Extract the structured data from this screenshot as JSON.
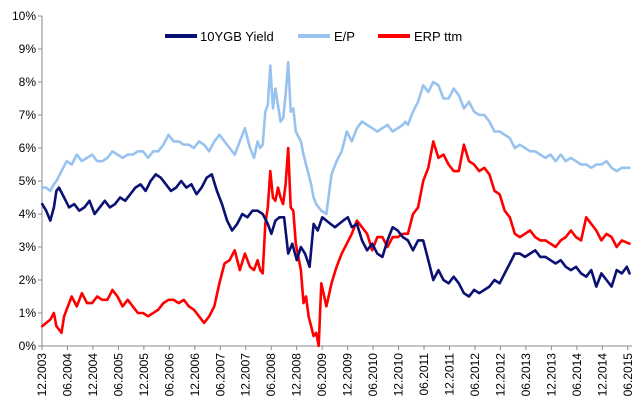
{
  "chart_data": {
    "type": "line",
    "title": "",
    "xlabel": "",
    "ylabel": "",
    "ylim": [
      0,
      10
    ],
    "x_range": [
      2003.917,
      2015.5
    ],
    "y_ticks": [
      "0%",
      "1%",
      "2%",
      "3%",
      "4%",
      "5%",
      "6%",
      "7%",
      "8%",
      "9%",
      "10%"
    ],
    "x_ticks": [
      "12.2003",
      "06.2004",
      "12.2004",
      "06.2005",
      "12.2005",
      "06.2006",
      "12.2006",
      "06.2007",
      "12.2007",
      "06.2008",
      "12.2008",
      "06.2009",
      "12.2009",
      "06.2010",
      "12.2010",
      "06.2011",
      "12.2011",
      "06.2012",
      "12.2012",
      "06.2013",
      "12.2013",
      "06.2014",
      "12.2014",
      "06.2015"
    ],
    "legend_position": "top",
    "series": [
      {
        "name": "10YGB Yield",
        "color": "#0a1172",
        "x": [
          2003.92,
          2004.0,
          2004.08,
          2004.15,
          2004.2,
          2004.25,
          2004.35,
          2004.45,
          2004.55,
          2004.65,
          2004.75,
          2004.85,
          2004.95,
          2005.05,
          2005.15,
          2005.25,
          2005.35,
          2005.45,
          2005.55,
          2005.65,
          2005.75,
          2005.85,
          2005.95,
          2006.05,
          2006.15,
          2006.25,
          2006.35,
          2006.45,
          2006.55,
          2006.65,
          2006.75,
          2006.85,
          2006.95,
          2007.05,
          2007.15,
          2007.25,
          2007.35,
          2007.45,
          2007.55,
          2007.65,
          2007.75,
          2007.85,
          2007.95,
          2008.05,
          2008.15,
          2008.25,
          2008.35,
          2008.42,
          2008.5,
          2008.58,
          2008.67,
          2008.75,
          2008.83,
          2008.92,
          2009.0,
          2009.08,
          2009.17,
          2009.25,
          2009.33,
          2009.42,
          2009.5,
          2009.58,
          2009.67,
          2009.75,
          2009.83,
          2009.92,
          2010.0,
          2010.1,
          2010.2,
          2010.3,
          2010.4,
          2010.5,
          2010.6,
          2010.7,
          2010.8,
          2010.9,
          2011.0,
          2011.1,
          2011.2,
          2011.3,
          2011.4,
          2011.5,
          2011.6,
          2011.7,
          2011.8,
          2011.9,
          2012.0,
          2012.1,
          2012.2,
          2012.3,
          2012.4,
          2012.5,
          2012.6,
          2012.7,
          2012.8,
          2012.9,
          2013.0,
          2013.1,
          2013.2,
          2013.3,
          2013.4,
          2013.5,
          2013.6,
          2013.7,
          2013.8,
          2013.9,
          2014.0,
          2014.1,
          2014.2,
          2014.3,
          2014.4,
          2014.5,
          2014.6,
          2014.7,
          2014.8,
          2014.9,
          2015.0,
          2015.1,
          2015.2,
          2015.3,
          2015.4,
          2015.45
        ],
        "values": [
          4.3,
          4.1,
          3.8,
          4.2,
          4.7,
          4.8,
          4.5,
          4.2,
          4.3,
          4.1,
          4.2,
          4.4,
          4.0,
          4.2,
          4.4,
          4.2,
          4.3,
          4.5,
          4.4,
          4.6,
          4.8,
          4.9,
          4.7,
          5.0,
          5.2,
          5.1,
          4.9,
          4.7,
          4.8,
          5.0,
          4.8,
          4.9,
          4.6,
          4.8,
          5.1,
          5.2,
          4.7,
          4.3,
          3.8,
          3.5,
          3.7,
          4.0,
          3.9,
          4.1,
          4.1,
          4.0,
          3.7,
          3.4,
          3.8,
          3.9,
          3.9,
          2.8,
          3.1,
          2.6,
          3.0,
          2.8,
          2.4,
          3.7,
          3.5,
          3.9,
          3.8,
          3.7,
          3.6,
          3.7,
          3.8,
          3.9,
          3.6,
          3.7,
          3.2,
          2.9,
          3.1,
          2.8,
          2.7,
          3.2,
          3.6,
          3.5,
          3.3,
          3.2,
          2.9,
          3.2,
          3.2,
          2.6,
          2.0,
          2.3,
          2.0,
          1.9,
          2.1,
          1.9,
          1.6,
          1.5,
          1.7,
          1.6,
          1.7,
          1.8,
          2.0,
          1.9,
          2.2,
          2.5,
          2.8,
          2.8,
          2.7,
          2.8,
          2.9,
          2.7,
          2.7,
          2.6,
          2.5,
          2.6,
          2.4,
          2.3,
          2.4,
          2.2,
          2.1,
          2.3,
          1.8,
          2.2,
          2.0,
          1.8,
          2.3,
          2.2,
          2.4,
          2.2
        ]
      },
      {
        "name": "E/P",
        "color": "#99c3ef",
        "x": [
          2003.92,
          2004.0,
          2004.08,
          2004.15,
          2004.2,
          2004.3,
          2004.4,
          2004.5,
          2004.6,
          2004.7,
          2004.8,
          2004.9,
          2005.0,
          2005.1,
          2005.2,
          2005.3,
          2005.4,
          2005.5,
          2005.6,
          2005.7,
          2005.8,
          2005.9,
          2006.0,
          2006.1,
          2006.2,
          2006.3,
          2006.4,
          2006.5,
          2006.6,
          2006.7,
          2006.8,
          2006.9,
          2007.0,
          2007.1,
          2007.2,
          2007.3,
          2007.4,
          2007.5,
          2007.6,
          2007.7,
          2007.8,
          2007.9,
          2008.0,
          2008.08,
          2008.15,
          2008.2,
          2008.25,
          2008.3,
          2008.35,
          2008.4,
          2008.45,
          2008.5,
          2008.55,
          2008.6,
          2008.65,
          2008.7,
          2008.75,
          2008.8,
          2008.85,
          2008.9,
          2009.0,
          2009.05,
          2009.1,
          2009.15,
          2009.2,
          2009.25,
          2009.3,
          2009.35,
          2009.4,
          2009.5,
          2009.6,
          2009.7,
          2009.8,
          2009.9,
          2010.0,
          2010.1,
          2010.2,
          2010.3,
          2010.4,
          2010.5,
          2010.6,
          2010.7,
          2010.8,
          2010.9,
          2011.0,
          2011.05,
          2011.1,
          2011.15,
          2011.2,
          2011.3,
          2011.4,
          2011.5,
          2011.6,
          2011.7,
          2011.8,
          2011.9,
          2012.0,
          2012.1,
          2012.2,
          2012.3,
          2012.4,
          2012.5,
          2012.6,
          2012.7,
          2012.8,
          2012.9,
          2013.0,
          2013.1,
          2013.2,
          2013.3,
          2013.4,
          2013.5,
          2013.6,
          2013.7,
          2013.8,
          2013.9,
          2014.0,
          2014.1,
          2014.2,
          2014.3,
          2014.4,
          2014.5,
          2014.6,
          2014.7,
          2014.8,
          2014.9,
          2015.0,
          2015.1,
          2015.2,
          2015.3,
          2015.45
        ],
        "values": [
          4.8,
          4.8,
          4.7,
          4.9,
          5.0,
          5.3,
          5.6,
          5.5,
          5.8,
          5.6,
          5.7,
          5.8,
          5.6,
          5.6,
          5.7,
          5.9,
          5.8,
          5.7,
          5.8,
          5.8,
          5.9,
          5.9,
          5.7,
          5.9,
          5.9,
          6.1,
          6.4,
          6.2,
          6.2,
          6.1,
          6.1,
          6.0,
          6.2,
          6.1,
          5.9,
          6.2,
          6.4,
          6.2,
          6.0,
          5.8,
          6.2,
          6.6,
          6.0,
          5.7,
          6.2,
          6.0,
          6.1,
          7.1,
          7.3,
          8.5,
          7.2,
          7.8,
          7.3,
          6.8,
          6.9,
          7.6,
          8.6,
          7.1,
          7.2,
          6.5,
          6.2,
          5.8,
          5.5,
          5.2,
          4.9,
          4.5,
          4.3,
          4.2,
          4.1,
          4.0,
          5.2,
          5.6,
          5.9,
          6.5,
          6.2,
          6.6,
          6.8,
          6.7,
          6.6,
          6.5,
          6.6,
          6.7,
          6.5,
          6.6,
          6.7,
          6.8,
          6.7,
          6.9,
          7.1,
          7.4,
          7.9,
          7.7,
          8.0,
          7.9,
          7.5,
          7.5,
          7.8,
          7.6,
          7.2,
          7.4,
          7.1,
          7.0,
          7.0,
          6.8,
          6.5,
          6.5,
          6.4,
          6.3,
          6.0,
          6.1,
          6.0,
          5.9,
          5.9,
          5.8,
          5.7,
          5.8,
          5.6,
          5.8,
          5.6,
          5.7,
          5.6,
          5.5,
          5.5,
          5.4,
          5.5,
          5.5,
          5.6,
          5.4,
          5.3,
          5.4,
          5.4
        ]
      },
      {
        "name": "ERP ttm",
        "color": "#ff0000",
        "x": [
          2003.92,
          2004.0,
          2004.08,
          2004.15,
          2004.2,
          2004.25,
          2004.3,
          2004.35,
          2004.4,
          2004.5,
          2004.6,
          2004.7,
          2004.8,
          2004.9,
          2005.0,
          2005.1,
          2005.2,
          2005.3,
          2005.4,
          2005.5,
          2005.6,
          2005.7,
          2005.8,
          2005.9,
          2006.0,
          2006.1,
          2006.2,
          2006.3,
          2006.4,
          2006.5,
          2006.6,
          2006.7,
          2006.8,
          2006.9,
          2007.0,
          2007.1,
          2007.2,
          2007.3,
          2007.4,
          2007.5,
          2007.6,
          2007.7,
          2007.8,
          2007.9,
          2008.0,
          2008.08,
          2008.15,
          2008.2,
          2008.25,
          2008.3,
          2008.35,
          2008.4,
          2008.45,
          2008.5,
          2008.55,
          2008.6,
          2008.65,
          2008.7,
          2008.75,
          2008.8,
          2008.85,
          2008.9,
          2009.0,
          2009.05,
          2009.1,
          2009.15,
          2009.2,
          2009.25,
          2009.3,
          2009.35,
          2009.4,
          2009.5,
          2009.6,
          2009.7,
          2009.8,
          2009.9,
          2010.0,
          2010.1,
          2010.2,
          2010.3,
          2010.4,
          2010.5,
          2010.6,
          2010.7,
          2010.8,
          2010.9,
          2011.0,
          2011.1,
          2011.2,
          2011.3,
          2011.4,
          2011.5,
          2011.6,
          2011.7,
          2011.8,
          2011.9,
          2012.0,
          2012.1,
          2012.2,
          2012.3,
          2012.4,
          2012.5,
          2012.6,
          2012.7,
          2012.8,
          2012.9,
          2013.0,
          2013.1,
          2013.2,
          2013.3,
          2013.4,
          2013.5,
          2013.6,
          2013.7,
          2013.8,
          2013.9,
          2014.0,
          2014.1,
          2014.2,
          2014.3,
          2014.4,
          2014.5,
          2014.6,
          2014.7,
          2014.8,
          2014.9,
          2015.0,
          2015.1,
          2015.2,
          2015.3,
          2015.45
        ],
        "values": [
          0.6,
          0.7,
          0.8,
          1.0,
          0.6,
          0.5,
          0.4,
          0.9,
          1.1,
          1.5,
          1.2,
          1.6,
          1.3,
          1.3,
          1.5,
          1.4,
          1.4,
          1.7,
          1.5,
          1.2,
          1.4,
          1.2,
          1.0,
          1.0,
          0.9,
          1.0,
          1.1,
          1.3,
          1.4,
          1.4,
          1.3,
          1.4,
          1.2,
          1.1,
          0.9,
          0.7,
          0.9,
          1.2,
          1.9,
          2.5,
          2.6,
          2.9,
          2.3,
          2.8,
          2.4,
          2.3,
          2.6,
          2.3,
          2.2,
          3.7,
          4.2,
          5.3,
          4.5,
          4.4,
          4.8,
          4.5,
          4.3,
          4.9,
          6.0,
          4.2,
          4.1,
          3.1,
          2.3,
          1.3,
          1.5,
          0.9,
          0.6,
          0.3,
          0.4,
          0.0,
          1.9,
          1.2,
          1.9,
          2.4,
          2.8,
          3.1,
          3.4,
          3.8,
          3.6,
          3.4,
          2.9,
          3.3,
          3.3,
          3.0,
          3.3,
          3.3,
          3.4,
          3.4,
          4.0,
          4.2,
          5.0,
          5.4,
          6.2,
          5.7,
          5.8,
          5.5,
          5.3,
          5.3,
          6.1,
          5.6,
          5.5,
          5.3,
          5.4,
          5.2,
          4.7,
          4.6,
          4.1,
          3.9,
          3.4,
          3.3,
          3.4,
          3.5,
          3.3,
          3.2,
          3.2,
          3.1,
          3.0,
          3.2,
          3.3,
          3.5,
          3.3,
          3.2,
          3.9,
          3.7,
          3.5,
          3.2,
          3.4,
          3.3,
          3.0,
          3.2,
          3.1
        ]
      }
    ]
  }
}
